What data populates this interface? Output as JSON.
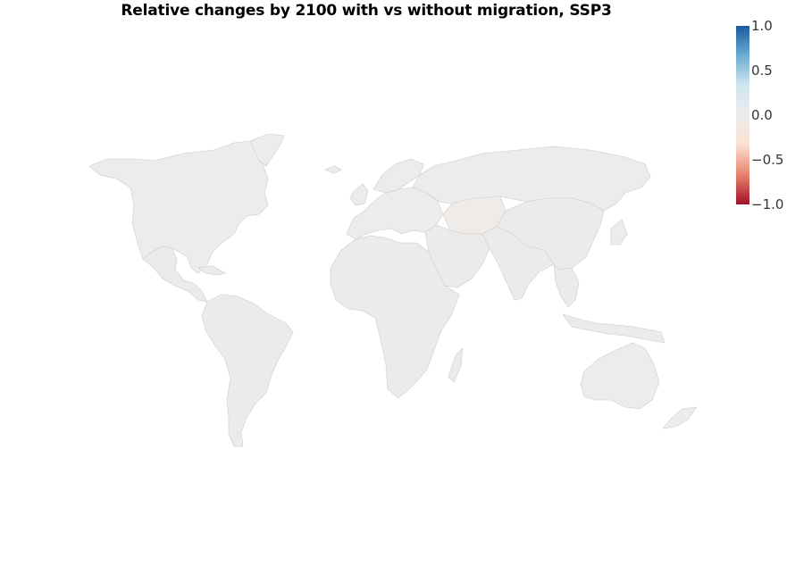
{
  "title": "Relative changes by 2100 with vs without migration, SSP3",
  "colorbar": {
    "min": -1.0,
    "max": 1.0,
    "ticks": [
      {
        "value": 1.0,
        "label": "1.0"
      },
      {
        "value": 0.5,
        "label": "0.5"
      },
      {
        "value": 0.0,
        "label": "0.0"
      },
      {
        "value": -0.5,
        "label": "−0.5"
      },
      {
        "value": -1.0,
        "label": "−1.0"
      }
    ],
    "colors": [
      "#a50f2a",
      "#e8826d",
      "#fbe0d2",
      "#ececec",
      "#cfe6f0",
      "#6eacd2",
      "#1a5b9e"
    ]
  },
  "map": {
    "projection": "world",
    "border_color": "#d6d6d6",
    "background": "#ffffff"
  },
  "regions": [
    {
      "name": "north-america",
      "value": 0.0
    },
    {
      "name": "greenland",
      "value": 0.0
    },
    {
      "name": "mexico-central-america",
      "value": -0.02
    },
    {
      "name": "caribbean",
      "value": -0.02
    },
    {
      "name": "south-america",
      "value": -0.02
    },
    {
      "name": "europe",
      "value": 0.0
    },
    {
      "name": "uk-ireland",
      "value": 0.0
    },
    {
      "name": "scandinavia",
      "value": 0.0
    },
    {
      "name": "russia",
      "value": 0.0
    },
    {
      "name": "central-asia",
      "value": -0.04
    },
    {
      "name": "middle-east",
      "value": -0.02
    },
    {
      "name": "africa",
      "value": -0.02
    },
    {
      "name": "madagascar",
      "value": -0.02
    },
    {
      "name": "south-asia",
      "value": -0.02
    },
    {
      "name": "china-east-asia",
      "value": -0.02
    },
    {
      "name": "japan",
      "value": 0.0
    },
    {
      "name": "southeast-asia",
      "value": -0.02
    },
    {
      "name": "indonesia",
      "value": -0.02
    },
    {
      "name": "australia",
      "value": 0.0
    },
    {
      "name": "new-zealand",
      "value": 0.0
    },
    {
      "name": "iceland",
      "value": 0.0
    }
  ]
}
